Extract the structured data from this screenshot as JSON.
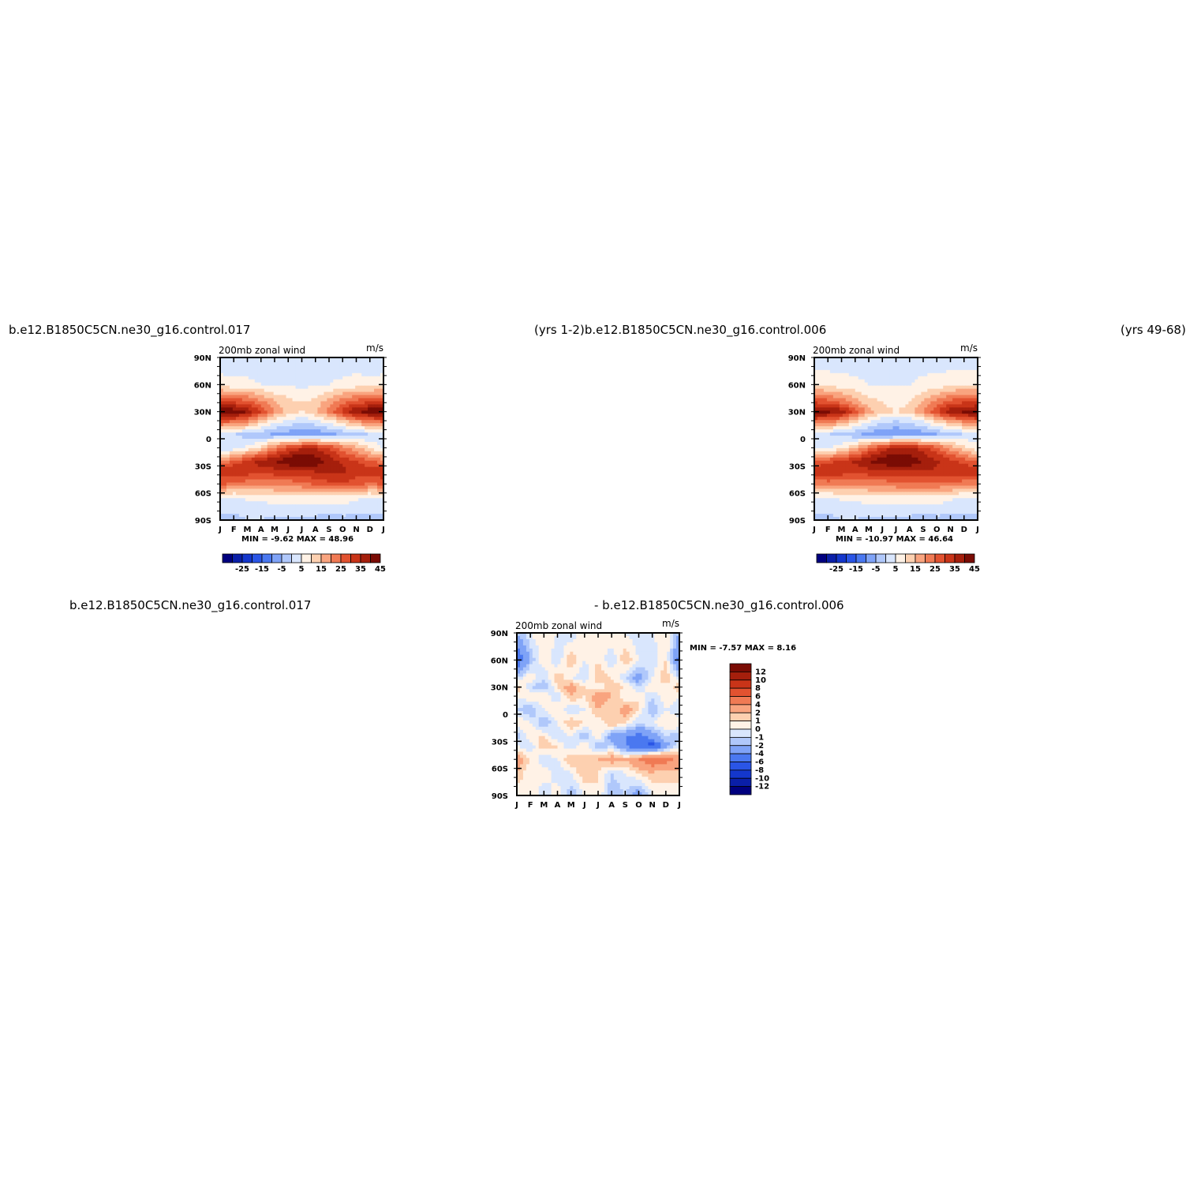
{
  "headlines": {
    "top_left": "b.e12.B1850C5CN.ne30_g16.control.017",
    "top_middle": "(yrs  1-2)b.e12.B1850C5CN.ne30_g16.control.006",
    "top_right": "(yrs  49-68)",
    "bottom_left": "b.e12.B1850C5CN.ne30_g16.control.017",
    "bottom_middle": "-  b.e12.B1850C5CN.ne30_g16.control.006"
  },
  "colors": {
    "wind_palette": [
      "#00007f",
      "#0a1fa8",
      "#1437cc",
      "#2a55e6",
      "#4a78f0",
      "#7fa3f7",
      "#b0c8fb",
      "#d9e6fd",
      "#fff2e6",
      "#fdd0b0",
      "#f9a47f",
      "#f07a54",
      "#e25230",
      "#c93418",
      "#a51f0c",
      "#7a0c04"
    ],
    "diff_palette": [
      "#00007f",
      "#0a1fa8",
      "#1437cc",
      "#2a55e6",
      "#4a78f0",
      "#7fa3f7",
      "#b0c8fb",
      "#d9e6fd",
      "#fff2e6",
      "#fdd0b0",
      "#f9a47f",
      "#f07a54",
      "#e25230",
      "#c93418",
      "#a51f0c",
      "#7a0c04"
    ]
  },
  "chart_data": [
    {
      "type": "heatmap",
      "title": "200mb  zonal  wind",
      "units": "m/s",
      "x_ticks": [
        "J",
        "F",
        "M",
        "A",
        "M",
        "J",
        "J",
        "A",
        "S",
        "O",
        "N",
        "D",
        "J"
      ],
      "y_ticks": [
        "90N",
        "60N",
        "30N",
        "0",
        "30S",
        "60S",
        "90S"
      ],
      "stats": "MIN =    -9.62  MAX =    48.96",
      "colorbar_labels": [
        "-25",
        "-15",
        "-5",
        "5",
        "15",
        "25",
        "35",
        "45"
      ],
      "latitudes": [
        90,
        60,
        40,
        30,
        20,
        5,
        -10,
        -25,
        -35,
        -50,
        -65,
        -90
      ],
      "months": [
        "J",
        "F",
        "M",
        "A",
        "M",
        "J",
        "J",
        "A",
        "S",
        "O",
        "N",
        "D",
        "J"
      ],
      "values": [
        [
          0,
          2,
          2,
          3,
          3,
          2,
          2,
          3,
          3,
          2,
          2,
          1,
          0
        ],
        [
          8,
          6,
          6,
          5,
          4,
          4,
          4,
          4,
          5,
          6,
          7,
          7,
          8
        ],
        [
          32,
          30,
          28,
          22,
          16,
          12,
          10,
          12,
          18,
          24,
          28,
          31,
          32
        ],
        [
          46,
          44,
          40,
          30,
          20,
          12,
          10,
          14,
          22,
          32,
          40,
          44,
          46
        ],
        [
          28,
          26,
          22,
          14,
          8,
          4,
          2,
          4,
          8,
          14,
          20,
          24,
          28
        ],
        [
          2,
          0,
          -2,
          -4,
          -6,
          -8,
          -9,
          -9,
          -7,
          -4,
          -2,
          0,
          2
        ],
        [
          0,
          2,
          6,
          12,
          22,
          30,
          34,
          34,
          30,
          22,
          16,
          10,
          4
        ],
        [
          20,
          26,
          32,
          38,
          40,
          44,
          48,
          44,
          38,
          34,
          30,
          26,
          22
        ],
        [
          34,
          36,
          34,
          32,
          34,
          34,
          34,
          36,
          38,
          36,
          32,
          34,
          36
        ],
        [
          26,
          24,
          22,
          20,
          22,
          22,
          24,
          26,
          28,
          30,
          28,
          24,
          26
        ],
        [
          4,
          4,
          6,
          6,
          8,
          8,
          8,
          8,
          8,
          8,
          6,
          4,
          4
        ],
        [
          -2,
          -2,
          0,
          0,
          -2,
          -2,
          -2,
          -2,
          -4,
          -2,
          -2,
          -2,
          -2
        ]
      ],
      "levels": [
        -35,
        -30,
        -25,
        -20,
        -15,
        -10,
        -5,
        0,
        5,
        10,
        15,
        20,
        25,
        30,
        35,
        40,
        45
      ]
    },
    {
      "type": "heatmap",
      "title": "200mb  zonal  wind",
      "units": "m/s",
      "x_ticks": [
        "J",
        "F",
        "M",
        "A",
        "M",
        "J",
        "J",
        "A",
        "S",
        "O",
        "N",
        "D",
        "J"
      ],
      "y_ticks": [
        "90N",
        "60N",
        "30N",
        "0",
        "30S",
        "60S",
        "90S"
      ],
      "stats": "MIN =  -10.97  MAX =    46.64",
      "colorbar_labels": [
        "-25",
        "-15",
        "-5",
        "5",
        "15",
        "25",
        "35",
        "45"
      ],
      "latitudes": [
        90,
        60,
        40,
        30,
        20,
        5,
        -10,
        -25,
        -35,
        -50,
        -65,
        -90
      ],
      "months": [
        "J",
        "F",
        "M",
        "A",
        "M",
        "J",
        "J",
        "A",
        "S",
        "O",
        "N",
        "D",
        "J"
      ],
      "values": [
        [
          0,
          2,
          2,
          3,
          3,
          2,
          2,
          3,
          3,
          2,
          2,
          1,
          0
        ],
        [
          10,
          8,
          7,
          6,
          5,
          5,
          5,
          5,
          6,
          7,
          8,
          9,
          10
        ],
        [
          30,
          28,
          24,
          18,
          12,
          10,
          8,
          10,
          16,
          22,
          28,
          30,
          30
        ],
        [
          44,
          42,
          38,
          28,
          18,
          12,
          10,
          12,
          20,
          30,
          38,
          42,
          44
        ],
        [
          26,
          24,
          20,
          12,
          6,
          2,
          0,
          2,
          6,
          12,
          18,
          22,
          26
        ],
        [
          2,
          0,
          -2,
          -4,
          -7,
          -9,
          -10,
          -10,
          -8,
          -5,
          -2,
          0,
          2
        ],
        [
          2,
          4,
          8,
          14,
          24,
          32,
          36,
          36,
          32,
          26,
          18,
          12,
          6
        ],
        [
          24,
          28,
          32,
          36,
          40,
          44,
          46,
          44,
          40,
          36,
          32,
          28,
          24
        ],
        [
          34,
          36,
          34,
          32,
          34,
          34,
          34,
          36,
          36,
          34,
          34,
          34,
          34
        ],
        [
          22,
          22,
          22,
          20,
          22,
          22,
          24,
          24,
          24,
          24,
          24,
          22,
          22
        ],
        [
          4,
          4,
          6,
          6,
          8,
          8,
          8,
          8,
          8,
          8,
          6,
          4,
          4
        ],
        [
          -2,
          -2,
          0,
          0,
          -2,
          -2,
          -2,
          -2,
          -4,
          -2,
          -2,
          -2,
          -2
        ]
      ],
      "levels": [
        -35,
        -30,
        -25,
        -20,
        -15,
        -10,
        -5,
        0,
        5,
        10,
        15,
        20,
        25,
        30,
        35,
        40,
        45
      ]
    },
    {
      "type": "heatmap",
      "title": "200mb  zonal  wind",
      "units": "m/s",
      "x_ticks": [
        "J",
        "F",
        "M",
        "A",
        "M",
        "J",
        "J",
        "A",
        "S",
        "O",
        "N",
        "D",
        "J"
      ],
      "y_ticks": [
        "90N",
        "60N",
        "30N",
        "0",
        "30S",
        "60S",
        "90S"
      ],
      "stats": "MIN =    -7.57  MAX =     8.16",
      "colorbar_labels": [
        "12",
        "10",
        "8",
        "6",
        "4",
        "2",
        "1",
        "0",
        "-1",
        "-2",
        "-4",
        "-6",
        "-8",
        "-10",
        "-12"
      ],
      "latitudes": [
        90,
        60,
        40,
        30,
        20,
        5,
        -10,
        -25,
        -35,
        -50,
        -65,
        -90
      ],
      "months": [
        "J",
        "F",
        "M",
        "A",
        "M",
        "J",
        "J",
        "A",
        "S",
        "O",
        "N",
        "D",
        "J"
      ],
      "values": [
        [
          -2,
          0,
          1,
          0,
          -1,
          1,
          0,
          1,
          0,
          -1,
          0,
          1,
          -2
        ],
        [
          -6,
          -2,
          1,
          -1,
          2,
          0,
          1,
          -1,
          2,
          0,
          -1,
          1,
          -5
        ],
        [
          -1,
          1,
          -1,
          2,
          0,
          -1,
          2,
          1,
          -1,
          -3,
          0,
          2,
          -1
        ],
        [
          2,
          -1,
          -2,
          1,
          3,
          1,
          0,
          2,
          1,
          -1,
          1,
          0,
          2
        ],
        [
          0,
          1,
          1,
          -1,
          2,
          1,
          3,
          2,
          0,
          1,
          -1,
          1,
          0
        ],
        [
          -1,
          -2,
          0,
          1,
          -1,
          0,
          2,
          1,
          3,
          1,
          -2,
          0,
          -1
        ],
        [
          1,
          0,
          -2,
          0,
          2,
          1,
          0,
          2,
          1,
          -1,
          0,
          1,
          1
        ],
        [
          -2,
          1,
          1,
          -1,
          0,
          -2,
          1,
          -3,
          -4,
          -5,
          -3,
          -1,
          -2
        ],
        [
          0,
          -1,
          2,
          1,
          -1,
          1,
          -2,
          -1,
          -4,
          -6,
          -7,
          -3,
          0
        ],
        [
          3,
          1,
          -1,
          0,
          2,
          1,
          2,
          3,
          2,
          4,
          6,
          5,
          3
        ],
        [
          2,
          0,
          1,
          -1,
          0,
          2,
          1,
          -1,
          0,
          1,
          2,
          1,
          2
        ],
        [
          0,
          1,
          -1,
          1,
          -2,
          0,
          1,
          -2,
          -1,
          -3,
          0,
          1,
          0
        ]
      ],
      "levels": [
        -14,
        -12,
        -10,
        -8,
        -6,
        -4,
        -2,
        -1,
        0,
        1,
        2,
        4,
        6,
        8,
        10,
        12
      ]
    }
  ]
}
